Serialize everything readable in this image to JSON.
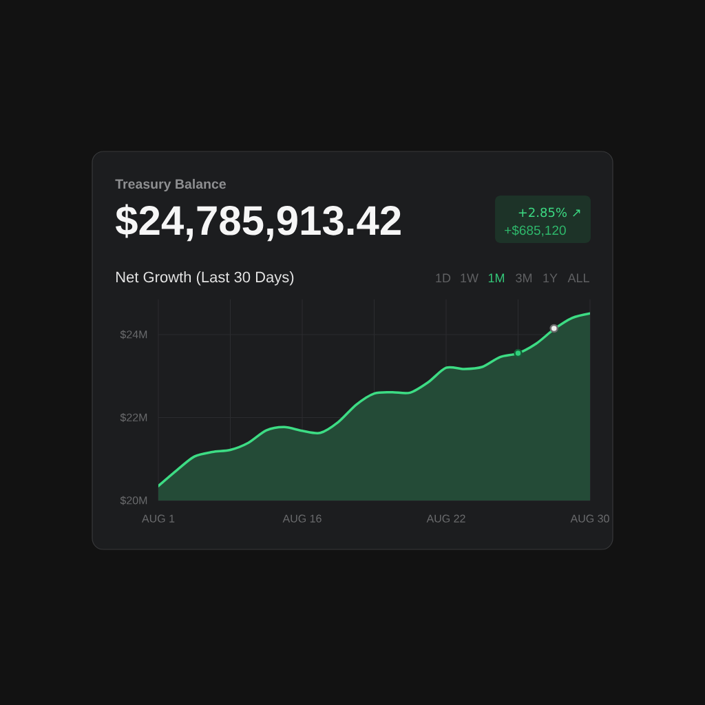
{
  "chart_data": {
    "type": "area",
    "title": "Treasury Balance",
    "subtitle": "Net Growth (Last 30 Days)",
    "annotations": [
      "$24,785,913.42",
      "+2.85% ↗",
      "+$685,120",
      "1D",
      "1W",
      "1M",
      "3M",
      "1Y",
      "ALL"
    ],
    "categories": [
      "AUG 1",
      null,
      null,
      null,
      null,
      null,
      null,
      null,
      "AUG 16",
      null,
      null,
      null,
      null,
      null,
      null,
      null,
      "AUG 22",
      null,
      null,
      null,
      null,
      null,
      null,
      null,
      "AUG 30"
    ],
    "ylim": [
      20,
      24.85
    ],
    "yticks": [
      {
        "value": 20,
        "label": "$20M"
      },
      {
        "value": 22,
        "label": "$22M"
      },
      {
        "value": 24,
        "label": "$24M"
      }
    ],
    "grid": true,
    "series": [
      {
        "color": "#3ddc84",
        "values": [
          20.35,
          20.72,
          21.06,
          21.17,
          21.22,
          21.39,
          21.69,
          21.77,
          21.68,
          21.63,
          21.89,
          22.31,
          22.58,
          22.61,
          22.6,
          22.85,
          23.2,
          23.17,
          23.22,
          23.46,
          23.55,
          23.78,
          24.13,
          24.4,
          24.51
        ]
      },
      {
        "type": "scatter",
        "marker": "circle",
        "values": [
          null,
          null,
          null,
          null,
          null,
          null,
          null,
          null,
          null,
          null,
          null,
          null,
          null,
          null,
          null,
          null,
          null,
          null,
          null,
          null,
          23.55,
          null,
          24.15,
          null,
          null
        ],
        "colors": [
          null,
          null,
          null,
          null,
          null,
          null,
          null,
          null,
          null,
          null,
          null,
          null,
          null,
          null,
          null,
          null,
          null,
          null,
          null,
          null,
          "#2fcf7a",
          null,
          "#eef0ef",
          null,
          null
        ]
      }
    ]
  }
}
